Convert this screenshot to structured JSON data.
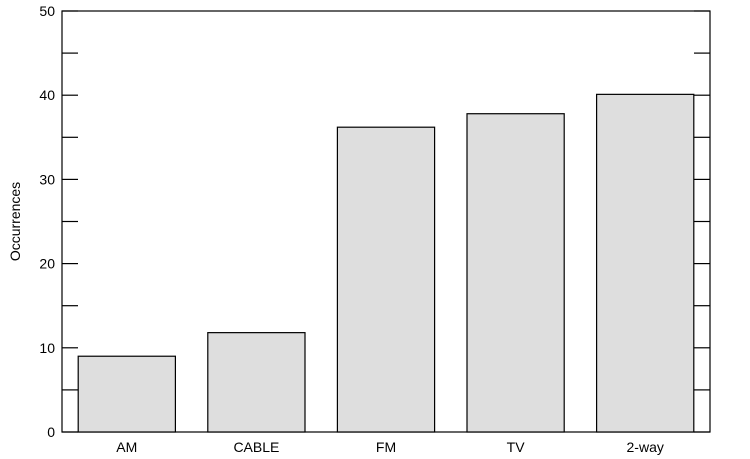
{
  "chart_data": {
    "type": "bar",
    "title": "",
    "xlabel": "",
    "ylabel": "Occurrences",
    "categories": [
      "AM",
      "CABLE",
      "FM",
      "TV",
      "2-way"
    ],
    "values": [
      9,
      11.8,
      36.2,
      37.8,
      40.1
    ],
    "ylim": [
      0,
      50
    ],
    "yticks_major": [
      0,
      10,
      20,
      30,
      40,
      50
    ],
    "yticks_minor": [
      5,
      15,
      25,
      35,
      45
    ],
    "ytick_labels": [
      "0",
      "10",
      "20",
      "30",
      "40",
      "50"
    ],
    "grid": false,
    "legend": "none",
    "colors": {
      "bar_fill": "#dedede",
      "bar_stroke": "#000000",
      "axis": "#000000"
    }
  }
}
